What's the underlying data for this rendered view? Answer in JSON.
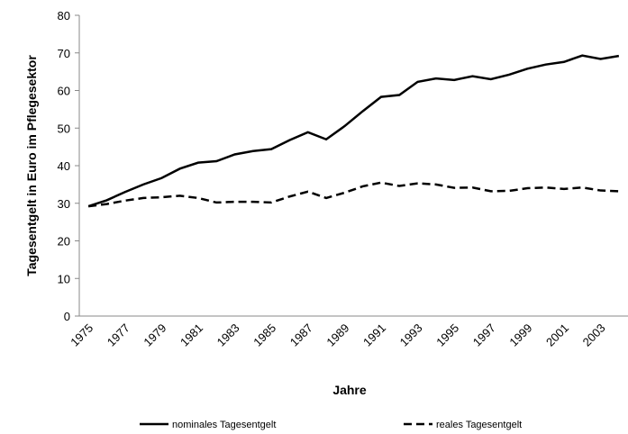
{
  "chart_data": {
    "type": "line",
    "x_label": "Jahre",
    "y_label": "Tagesentgelt in Euro im Pflegesektor",
    "categories": [
      "1975",
      null,
      "1977",
      null,
      "1979",
      null,
      "1981",
      null,
      "1983",
      null,
      "1985",
      null,
      "1987",
      null,
      "1989",
      null,
      "1991",
      null,
      "1993",
      null,
      "1995",
      null,
      "1997",
      null,
      "1999",
      null,
      "2001",
      null,
      "2003",
      null
    ],
    "series": [
      {
        "name": "nominales Tagesentgelt",
        "color": "#000000",
        "dash": "solid",
        "values": [
          29.2,
          30.8,
          33,
          35,
          36.7,
          39.2,
          40.8,
          41.2,
          43,
          43.9,
          44.4,
          46.8,
          48.9,
          47,
          50.5,
          54.5,
          58.3,
          58.8,
          62.3,
          63.2,
          62.8,
          63.8,
          63,
          64.2,
          65.8,
          66.9,
          67.6,
          69.3,
          68.4,
          69.2
        ]
      },
      {
        "name": "reales Tagesentgelt",
        "color": "#000000",
        "dash": "dashed",
        "values": [
          29.2,
          29.8,
          30.7,
          31.4,
          31.6,
          32,
          31.4,
          30.2,
          30.4,
          30.4,
          30.2,
          31.8,
          33.1,
          31.4,
          32.8,
          34.5,
          35.5,
          34.6,
          35.3,
          35,
          34.1,
          34.2,
          33.2,
          33.3,
          34,
          34.2,
          33.8,
          34.2,
          33.4,
          33.2
        ]
      }
    ],
    "ylim": [
      0,
      80
    ],
    "yticks": [
      0,
      10,
      20,
      30,
      40,
      50,
      60,
      70,
      80
    ],
    "grid": false,
    "legend": "bottom"
  }
}
